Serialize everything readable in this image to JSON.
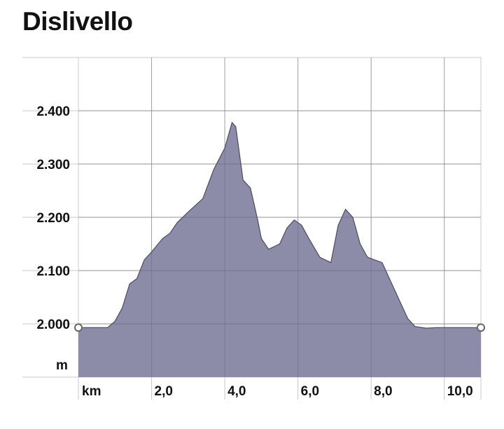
{
  "title": "Dislivello",
  "colors": {
    "area": "#8c8ca8",
    "line": "#4a4a66",
    "grid": "#c8c8c8",
    "text": "#111111"
  },
  "chart_data": {
    "type": "area",
    "title": "Dislivello",
    "x_unit": "km",
    "y_unit": "m",
    "xlim": [
      0,
      11.0
    ],
    "ylim": [
      1900,
      2500
    ],
    "x_ticks": [
      2.0,
      4.0,
      6.0,
      8.0,
      10.0
    ],
    "x_tick_labels": [
      "2,0",
      "4,0",
      "6,0",
      "8,0",
      "10,0"
    ],
    "y_ticks": [
      2000,
      2100,
      2200,
      2300,
      2400
    ],
    "y_tick_labels": [
      "2.000",
      "2.100",
      "2.200",
      "2.300",
      "2.400"
    ],
    "grid": true,
    "series": [
      {
        "x": [
          0.0,
          0.3,
          0.8,
          1.0,
          1.2,
          1.4,
          1.6,
          1.8,
          2.0,
          2.3,
          2.5,
          2.7,
          3.0,
          3.4,
          3.7,
          4.0,
          4.2,
          4.3,
          4.5,
          4.7,
          4.9,
          5.0,
          5.2,
          5.5,
          5.7,
          5.9,
          6.1,
          6.3,
          6.6,
          6.9,
          7.1,
          7.3,
          7.5,
          7.7,
          7.9,
          8.1,
          8.3,
          8.5,
          8.8,
          9.0,
          9.2,
          9.5,
          9.8,
          10.2,
          10.5,
          11.0
        ],
        "y": [
          1993,
          1993,
          1993,
          2005,
          2030,
          2075,
          2085,
          2120,
          2135,
          2160,
          2170,
          2190,
          2210,
          2235,
          2290,
          2330,
          2378,
          2370,
          2270,
          2255,
          2195,
          2160,
          2140,
          2150,
          2180,
          2195,
          2185,
          2160,
          2125,
          2115,
          2185,
          2215,
          2200,
          2150,
          2125,
          2120,
          2115,
          2085,
          2040,
          2010,
          1995,
          1992,
          1993,
          1993,
          1993,
          1993
        ]
      }
    ]
  }
}
